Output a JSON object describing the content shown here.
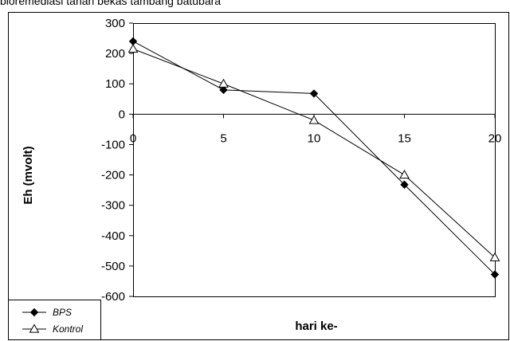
{
  "caption": "bioremediasi tanah bekas tambang batubara",
  "chart_data": {
    "type": "line",
    "title": "",
    "xlabel": "hari ke-",
    "ylabel": "Eh (mvolt)",
    "x": [
      0,
      5,
      10,
      15,
      20
    ],
    "xlim": [
      0,
      20
    ],
    "ylim": [
      -600,
      300
    ],
    "x_ticks": [
      0,
      5,
      10,
      15,
      20
    ],
    "y_ticks": [
      300,
      200,
      100,
      0,
      -100,
      -200,
      -300,
      -400,
      -500,
      -600
    ],
    "grid": false,
    "legend_position": "bottom-left",
    "series": [
      {
        "name": "BPS",
        "marker": "diamond",
        "color": "#000000",
        "values": [
          240,
          80,
          68,
          -232,
          -528
        ]
      },
      {
        "name": "Kontrol",
        "marker": "triangle-open",
        "color": "#000000",
        "values": [
          215,
          100,
          -20,
          -200,
          -472
        ]
      }
    ]
  }
}
